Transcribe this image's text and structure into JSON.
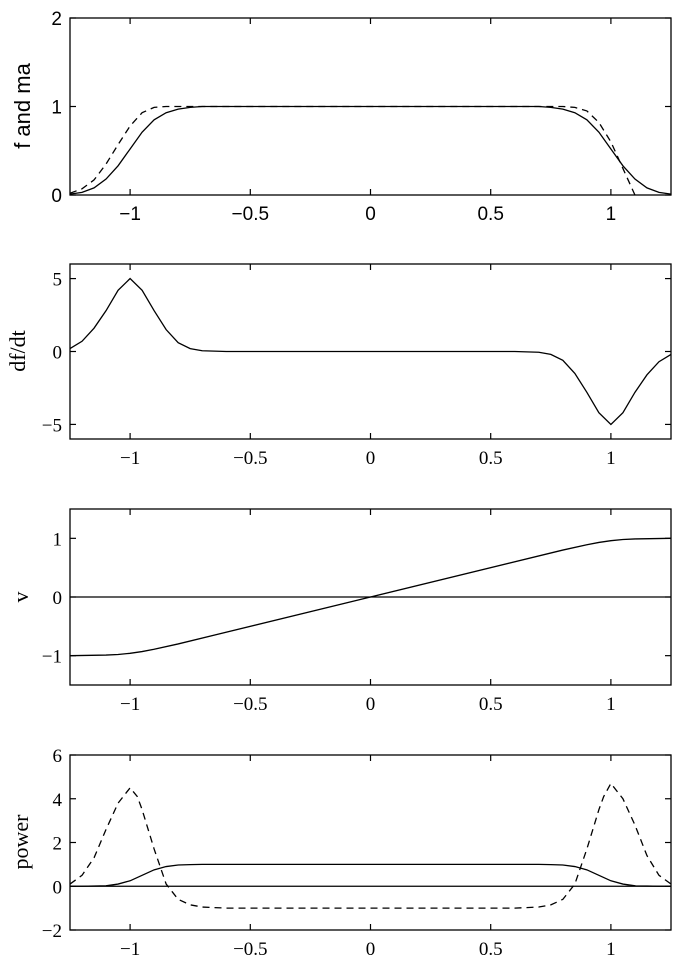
{
  "chart_data": [
    {
      "type": "line",
      "ylabel": "f and ma",
      "font": "sans",
      "xlim": [
        -1.25,
        1.25
      ],
      "ylim": [
        0,
        2
      ],
      "xticks": [
        -1,
        -0.5,
        0,
        0.5,
        1
      ],
      "xtick_labels": [
        "−1",
        "−0.5",
        "0",
        "0.5",
        "1"
      ],
      "yticks": [
        0,
        1,
        2
      ],
      "ytick_labels": [
        "0",
        "1",
        "2"
      ],
      "series": [
        {
          "style": "solid",
          "x": [
            -1.25,
            -1.2,
            -1.15,
            -1.1,
            -1.05,
            -1.0,
            -0.95,
            -0.9,
            -0.85,
            -0.8,
            -0.75,
            -0.7,
            -0.6,
            -0.5,
            0,
            0.5,
            0.6,
            0.7,
            0.75,
            0.8,
            0.85,
            0.9,
            0.95,
            1.0,
            1.05,
            1.1,
            1.15,
            1.2,
            1.25
          ],
          "y": [
            0.01,
            0.03,
            0.08,
            0.18,
            0.33,
            0.52,
            0.71,
            0.85,
            0.93,
            0.97,
            0.99,
            1.0,
            1.0,
            1.0,
            1.0,
            1.0,
            1.0,
            1.0,
            0.99,
            0.97,
            0.93,
            0.85,
            0.71,
            0.52,
            0.33,
            0.18,
            0.08,
            0.03,
            0.01
          ]
        },
        {
          "style": "dashed",
          "x": [
            -1.25,
            -1.2,
            -1.15,
            -1.1,
            -1.05,
            -1.0,
            -0.95,
            -0.9,
            -0.85,
            -0.8,
            -0.7,
            -0.5,
            0,
            0.5,
            0.7,
            0.8,
            0.85,
            0.9,
            0.95,
            1.0,
            1.05,
            1.1
          ],
          "y": [
            0.02,
            0.07,
            0.17,
            0.35,
            0.57,
            0.78,
            0.93,
            0.99,
            1.0,
            1.0,
            1.0,
            1.0,
            1.0,
            1.0,
            1.0,
            1.0,
            0.99,
            0.95,
            0.82,
            0.6,
            0.3,
            0.0
          ]
        }
      ]
    },
    {
      "type": "line",
      "ylabel": "df/dt",
      "font": "serif",
      "xlim": [
        -1.25,
        1.25
      ],
      "ylim": [
        -6,
        6
      ],
      "xticks": [
        -1,
        -0.5,
        0,
        0.5,
        1
      ],
      "xtick_labels": [
        "−1",
        "−0.5",
        "0",
        "0.5",
        "1"
      ],
      "yticks": [
        -5,
        0,
        5
      ],
      "ytick_labels": [
        "−5",
        "0",
        "5"
      ],
      "series": [
        {
          "style": "solid",
          "x": [
            -1.25,
            -1.2,
            -1.15,
            -1.1,
            -1.05,
            -1.0,
            -0.95,
            -0.9,
            -0.85,
            -0.8,
            -0.75,
            -0.7,
            -0.6,
            -0.5,
            0,
            0.5,
            0.6,
            0.7,
            0.75,
            0.8,
            0.85,
            0.9,
            0.95,
            1.0,
            1.05,
            1.1,
            1.15,
            1.2,
            1.25
          ],
          "y": [
            0.2,
            0.7,
            1.6,
            2.8,
            4.2,
            5.0,
            4.2,
            2.8,
            1.5,
            0.6,
            0.2,
            0.05,
            0.0,
            0.0,
            0.0,
            0.0,
            0.0,
            -0.05,
            -0.2,
            -0.6,
            -1.5,
            -2.8,
            -4.2,
            -5.0,
            -4.2,
            -2.8,
            -1.6,
            -0.7,
            -0.2
          ]
        }
      ]
    },
    {
      "type": "line",
      "ylabel": "v",
      "font": "serif",
      "xlim": [
        -1.25,
        1.25
      ],
      "ylim": [
        -1.5,
        1.5
      ],
      "xticks": [
        -1,
        -0.5,
        0,
        0.5,
        1
      ],
      "xtick_labels": [
        "−1",
        "−0.5",
        "0",
        "0.5",
        "1"
      ],
      "yticks": [
        -1,
        0,
        1
      ],
      "ytick_labels": [
        "−1",
        "0",
        "1"
      ],
      "series": [
        {
          "style": "solid",
          "x": [
            -1.25,
            -1.1,
            -1.05,
            -1.0,
            -0.95,
            -0.9,
            -0.8,
            0,
            0.8,
            0.9,
            0.95,
            1.0,
            1.05,
            1.1,
            1.25
          ],
          "y": [
            -1.0,
            -0.99,
            -0.98,
            -0.96,
            -0.93,
            -0.89,
            -0.8,
            0.0,
            0.8,
            0.89,
            0.93,
            0.96,
            0.98,
            0.99,
            1.0
          ]
        },
        {
          "style": "solid",
          "x": [
            -1.25,
            1.25
          ],
          "y": [
            0,
            0
          ]
        }
      ]
    },
    {
      "type": "line",
      "ylabel": "power",
      "font": "serif",
      "xlim": [
        -1.25,
        1.25
      ],
      "ylim": [
        -2,
        6
      ],
      "xticks": [
        -1,
        -0.5,
        0,
        0.5,
        1
      ],
      "xtick_labels": [
        "−1",
        "−0.5",
        "0",
        "0.5",
        "1"
      ],
      "yticks": [
        -2,
        0,
        2,
        4,
        6
      ],
      "ytick_labels": [
        "−2",
        "0",
        "2",
        "4",
        "6"
      ],
      "series": [
        {
          "style": "solid",
          "x": [
            -1.25,
            -1.2,
            -1.1,
            -1.05,
            -1.0,
            -0.95,
            -0.9,
            -0.85,
            -0.8,
            -0.75,
            -0.7,
            -0.5,
            0,
            0.5,
            0.7,
            0.75,
            0.8,
            0.85,
            0.9,
            0.95,
            1.0,
            1.05,
            1.1,
            1.2,
            1.25
          ],
          "y": [
            0.0,
            0.0,
            0.02,
            0.1,
            0.25,
            0.5,
            0.75,
            0.9,
            0.97,
            0.99,
            1.0,
            1.0,
            1.0,
            1.0,
            1.0,
            0.99,
            0.97,
            0.9,
            0.75,
            0.5,
            0.25,
            0.1,
            0.02,
            0.0,
            0.0
          ]
        },
        {
          "style": "dashed",
          "x": [
            -1.25,
            -1.2,
            -1.15,
            -1.1,
            -1.05,
            -1.0,
            -0.97,
            -0.95,
            -0.9,
            -0.85,
            -0.8,
            -0.75,
            -0.7,
            -0.6,
            -0.5,
            0,
            0.5,
            0.6,
            0.7,
            0.75,
            0.8,
            0.85,
            0.9,
            0.95,
            0.97,
            1.0,
            1.05,
            1.1,
            1.15,
            1.2,
            1.25
          ],
          "y": [
            0.1,
            0.5,
            1.3,
            2.6,
            3.8,
            4.5,
            4.1,
            3.5,
            1.7,
            0.1,
            -0.6,
            -0.85,
            -0.95,
            -1.0,
            -1.0,
            -1.0,
            -1.0,
            -1.0,
            -0.95,
            -0.85,
            -0.6,
            0.1,
            1.7,
            3.5,
            4.1,
            4.7,
            4.0,
            2.8,
            1.4,
            0.5,
            0.1
          ]
        },
        {
          "style": "solid",
          "x": [
            -1.25,
            1.25
          ],
          "y": [
            0,
            0
          ]
        }
      ]
    }
  ]
}
